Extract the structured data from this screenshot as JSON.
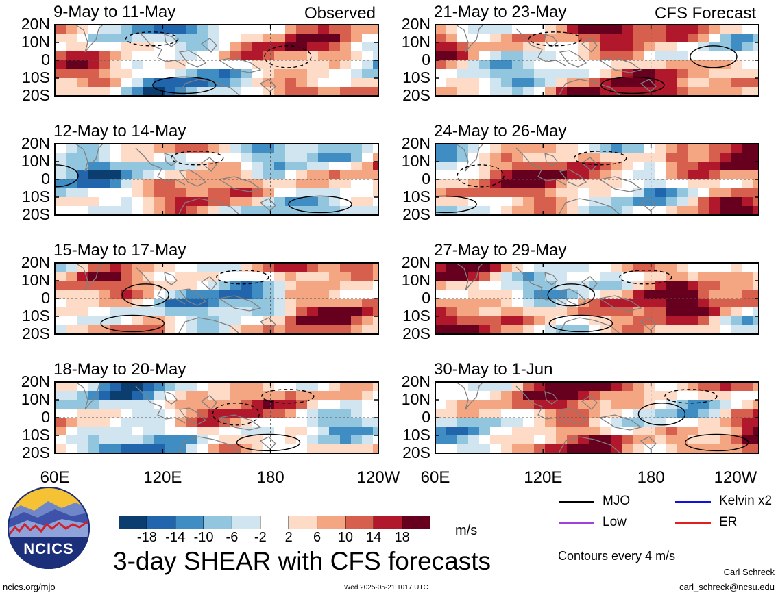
{
  "panels": [
    {
      "title": "9-May to 11-May",
      "label": "Observed"
    },
    {
      "title": "21-May to 23-May",
      "label": "CFS Forecast"
    },
    {
      "title": "12-May to 14-May",
      "label": ""
    },
    {
      "title": "24-May to 26-May",
      "label": ""
    },
    {
      "title": "15-May to 17-May",
      "label": ""
    },
    {
      "title": "27-May to 29-May",
      "label": ""
    },
    {
      "title": "18-May to 20-May",
      "label": ""
    },
    {
      "title": "30-May to 1-Jun",
      "label": ""
    }
  ],
  "lat_ticks": [
    "20N",
    "10N",
    "0",
    "10S",
    "20S"
  ],
  "lon_ticks": [
    "60E",
    "120E",
    "180",
    "120W"
  ],
  "colorbar": {
    "labels": [
      "-18",
      "-14",
      "-10",
      "-6",
      "-2",
      "2",
      "6",
      "10",
      "14",
      "18"
    ],
    "colors": [
      "#0b3d6e",
      "#2166ac",
      "#3f8dc3",
      "#92c5de",
      "#d1e5f0",
      "#ffffff",
      "#fddbc7",
      "#f4a582",
      "#d6604d",
      "#b2182b",
      "#67001f"
    ],
    "unit": "m/s"
  },
  "legend": [
    {
      "name": "MJO",
      "color": "#000000"
    },
    {
      "name": "Kelvin x2",
      "color": "#1010e0"
    },
    {
      "name": "Low",
      "color": "#a040e0"
    },
    {
      "name": "ER",
      "color": "#e02020"
    }
  ],
  "contour_note": "Contours every 4 m/s",
  "main_title": "3-day SHEAR with CFS forecasts",
  "logo_text": "NCICS",
  "url": "ncics.org/mjo",
  "timestamp": "Wed 2025-05-21 1017 UTC",
  "author": "Carl Schreck",
  "email": "carl_schreck@ncsu.edu"
}
